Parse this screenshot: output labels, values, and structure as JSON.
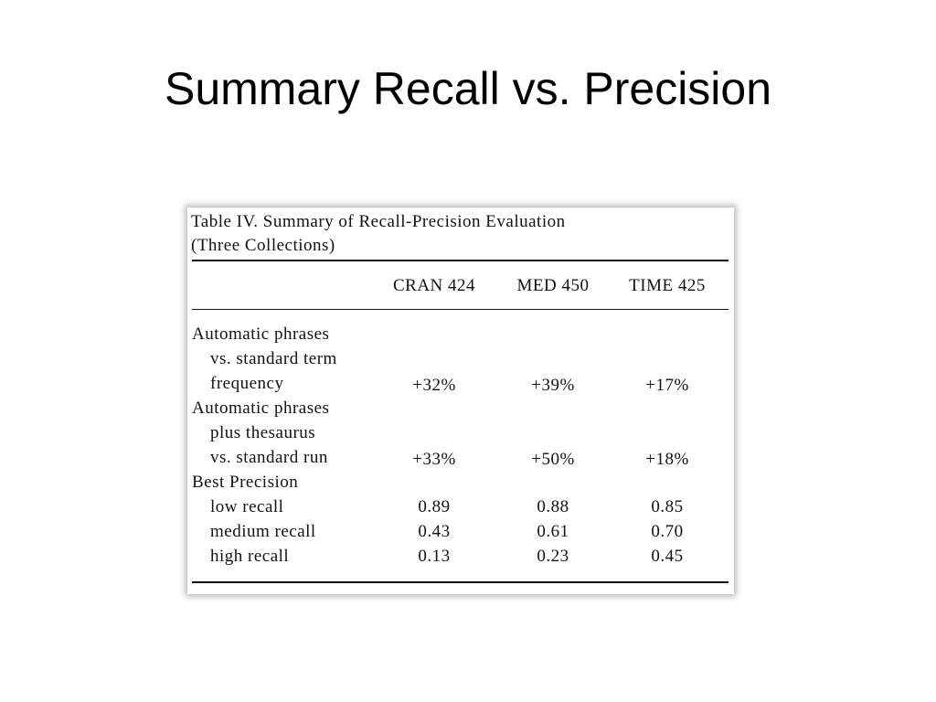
{
  "title": "Summary Recall vs. Precision",
  "table": {
    "caption": [
      "Table IV. Summary of Recall-Precision Evaluation",
      "(Three Collections)"
    ],
    "headers": [
      "CRAN 424",
      "MED 450",
      "TIME 425"
    ],
    "rows": [
      {
        "label": [
          "Automatic phrases",
          "vs. standard term",
          "frequency"
        ],
        "values": [
          "+32%",
          "+39%",
          "+17%"
        ]
      },
      {
        "label": [
          "Automatic phrases",
          "plus thesaurus",
          "vs. standard run"
        ],
        "values": [
          "+33%",
          "+50%",
          "+18%"
        ]
      },
      {
        "label": [
          "Best Precision"
        ]
      },
      {
        "label": [
          "low recall"
        ],
        "values": [
          "0.89",
          "0.88",
          "0.85"
        ]
      },
      {
        "label": [
          "medium recall"
        ],
        "values": [
          "0.43",
          "0.61",
          "0.70"
        ]
      },
      {
        "label": [
          "high recall"
        ],
        "values": [
          "0.13",
          "0.23",
          "0.45"
        ]
      }
    ]
  }
}
